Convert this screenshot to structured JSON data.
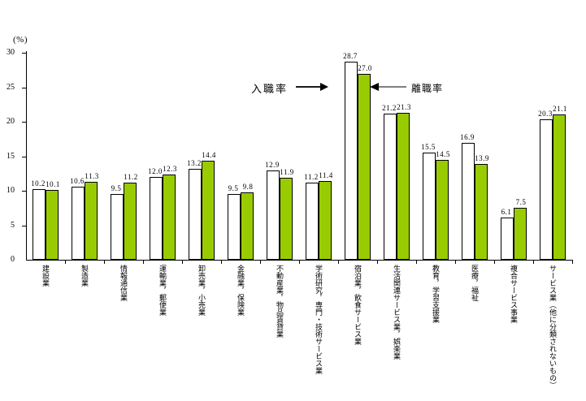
{
  "chart_data": {
    "type": "bar",
    "title": "",
    "unit_label": "(%)",
    "xlabel": "",
    "ylabel": "(%)",
    "ylim": [
      0,
      30
    ],
    "yticks": [
      0,
      5,
      10,
      15,
      20,
      25,
      30
    ],
    "grid": false,
    "legend_position": "none",
    "categories": [
      "建設業",
      "製造業",
      "情報通信業",
      "運輸業，郵便業",
      "卸売業，小売業",
      "金融業，保険業",
      "不動産業，物品賃貸業",
      "学術研究，専門・技術サービス業",
      "宿泊業，飲食サービス業",
      "生活関連サービス業，娯楽業",
      "教育，学習支援業",
      "医療，福祉",
      "複合サービス事業",
      "サービス業（他に分類されないもの）"
    ],
    "series": [
      {
        "name": "入職率",
        "fill": "#ffffff",
        "values": [
          10.2,
          10.6,
          9.5,
          12.0,
          13.2,
          9.5,
          12.9,
          11.2,
          28.7,
          21.2,
          15.5,
          16.9,
          6.1,
          20.3
        ]
      },
      {
        "name": "離職率",
        "fill": "#99cc00",
        "values": [
          10.1,
          11.3,
          11.2,
          12.3,
          14.4,
          9.8,
          11.9,
          11.4,
          27.0,
          21.3,
          14.5,
          13.9,
          7.5,
          21.1
        ]
      }
    ],
    "annotations": [
      {
        "label": "入職率",
        "direction": "right",
        "points_to": "white bar of 宿泊業，飲食サービス業"
      },
      {
        "label": "離職率",
        "direction": "left",
        "points_to": "green bar of 宿泊業，飲食サービス業"
      }
    ]
  },
  "colors": {
    "hire_bar_fill": "#ffffff",
    "leave_bar_fill": "#99cc00",
    "bar_outline": "#000000",
    "axis": "#000000",
    "right_arrow": "#000000",
    "left_arrow_line": "#7f7f7f",
    "left_arrow_head": "#000000",
    "text": "#000000"
  }
}
